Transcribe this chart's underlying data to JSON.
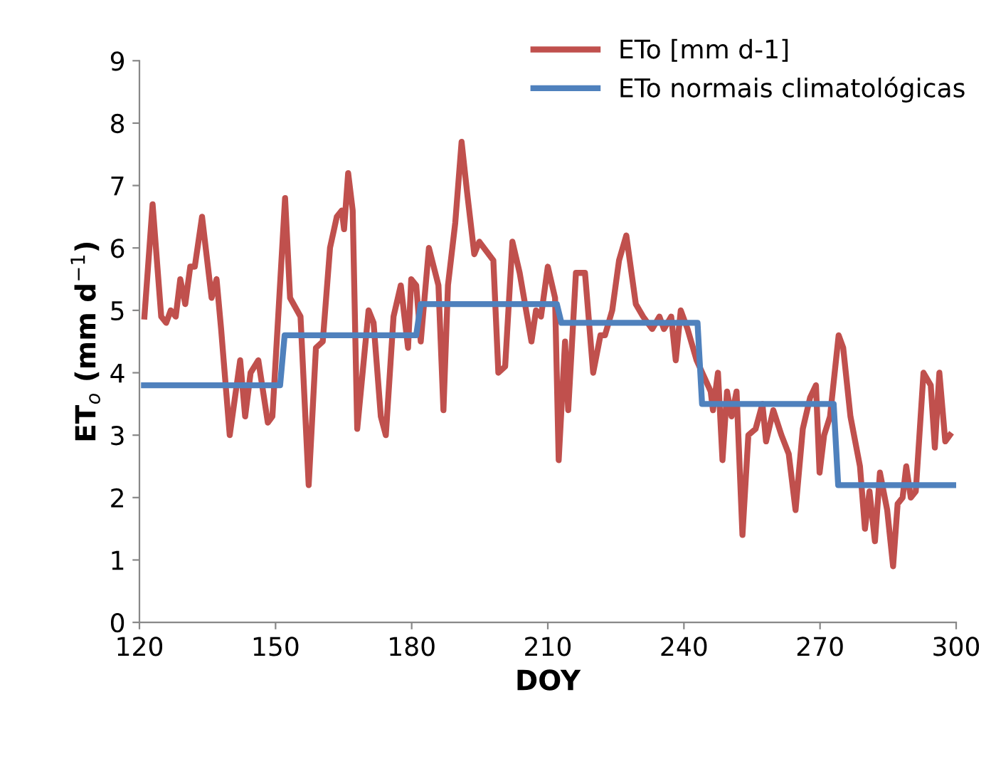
{
  "chart_data": {
    "type": "line",
    "xlabel": "DOY",
    "ylabel": "ET$_{o}$ (mm d$^{−1}$)",
    "xlim": [
      120,
      300
    ],
    "xticks": [
      120,
      150,
      180,
      210,
      240,
      270,
      300
    ],
    "ylim": [
      0,
      9
    ],
    "yticks": [
      0,
      1,
      2,
      3,
      4,
      5,
      6,
      7,
      8,
      9
    ],
    "grid": false,
    "legend": "top right",
    "marker": "none",
    "line_style": "solid",
    "series": [
      {
        "name": "ETo [mm d-1]",
        "color": "#c0504d",
        "x": [
          121.1,
          122.9,
          124.8,
          125.9,
          126.9,
          128,
          129,
          130.1,
          131.2,
          132.2,
          133.8,
          135.9,
          137,
          138,
          139.9,
          142.2,
          143.3,
          144.5,
          146.2,
          148.3,
          149.3,
          152.1,
          153.2,
          155.5,
          157.3,
          158.9,
          160.4,
          162,
          163.5,
          164.6,
          165.1,
          166,
          167,
          168,
          170.5,
          171.6,
          173.2,
          174.3,
          176,
          177.6,
          179.2,
          179.9,
          181,
          182,
          183.8,
          185.9,
          187,
          188,
          189.6,
          191,
          192.2,
          193.8,
          194.9,
          198,
          199.1,
          200.6,
          202.2,
          203.8,
          206.4,
          207.4,
          208.5,
          210,
          211.6,
          212.4,
          213.8,
          214.5,
          216.2,
          218.2,
          220,
          221.6,
          222.6,
          224.2,
          225.7,
          227.3,
          229.4,
          231,
          233,
          234.6,
          235.6,
          237.2,
          238.2,
          239.3,
          240.8,
          242.8,
          245.9,
          246.4,
          247.5,
          248.5,
          249.5,
          250.5,
          251.6,
          252.9,
          254.2,
          255.8,
          257.3,
          258.1,
          259.7,
          261.5,
          263.1,
          264.6,
          266.2,
          267.8,
          269.1,
          269.9,
          270.9,
          272.2,
          274.1,
          275.1,
          276.7,
          278.8,
          279.9,
          280.9,
          282.1,
          283.2,
          284.8,
          286.1,
          287.1,
          288.2,
          289,
          290,
          291.1,
          292.8,
          294.4,
          295.3,
          296.3,
          297.6,
          298.6
        ],
        "values": [
          4.9,
          6.7,
          4.9,
          4.8,
          5.0,
          4.9,
          5.5,
          5.1,
          5.7,
          5.7,
          6.5,
          5.2,
          5.5,
          4.7,
          3.0,
          4.2,
          3.3,
          4.0,
          4.2,
          3.2,
          3.3,
          6.8,
          5.2,
          4.9,
          2.2,
          4.4,
          4.5,
          6.0,
          6.5,
          6.6,
          6.3,
          7.2,
          6.6,
          3.1,
          5.0,
          4.8,
          3.3,
          3.0,
          4.9,
          5.4,
          4.4,
          5.5,
          5.4,
          4.5,
          6.0,
          5.4,
          3.4,
          5.4,
          6.4,
          7.7,
          6.9,
          5.9,
          6.1,
          5.8,
          4.0,
          4.1,
          6.1,
          5.6,
          4.5,
          5.0,
          4.9,
          5.7,
          5.2,
          2.6,
          4.5,
          3.4,
          5.6,
          5.6,
          4.0,
          4.6,
          4.6,
          5.0,
          5.8,
          6.2,
          5.1,
          4.9,
          4.7,
          4.9,
          4.7,
          4.9,
          4.2,
          5.0,
          4.7,
          4.2,
          3.7,
          3.4,
          4.0,
          2.6,
          3.7,
          3.3,
          3.7,
          1.4,
          3.0,
          3.1,
          3.5,
          2.9,
          3.4,
          3.0,
          2.7,
          1.8,
          3.1,
          3.6,
          3.8,
          2.4,
          3.0,
          3.3,
          4.6,
          4.4,
          3.3,
          2.5,
          1.5,
          2.1,
          1.3,
          2.4,
          1.8,
          0.9,
          1.9,
          2.0,
          2.5,
          2.0,
          2.1,
          4.0,
          3.8,
          2.8,
          4.0,
          2.9,
          3.0
        ]
      },
      {
        "name": "ETo normais climatológicas",
        "color": "#4f81bd",
        "x": [
          121,
          151,
          152,
          181,
          182,
          212,
          213,
          243,
          244,
          273,
          274,
          300
        ],
        "values": [
          3.8,
          3.8,
          4.6,
          4.6,
          5.1,
          5.1,
          4.8,
          4.8,
          3.5,
          3.5,
          2.2,
          2.2
        ]
      }
    ]
  }
}
